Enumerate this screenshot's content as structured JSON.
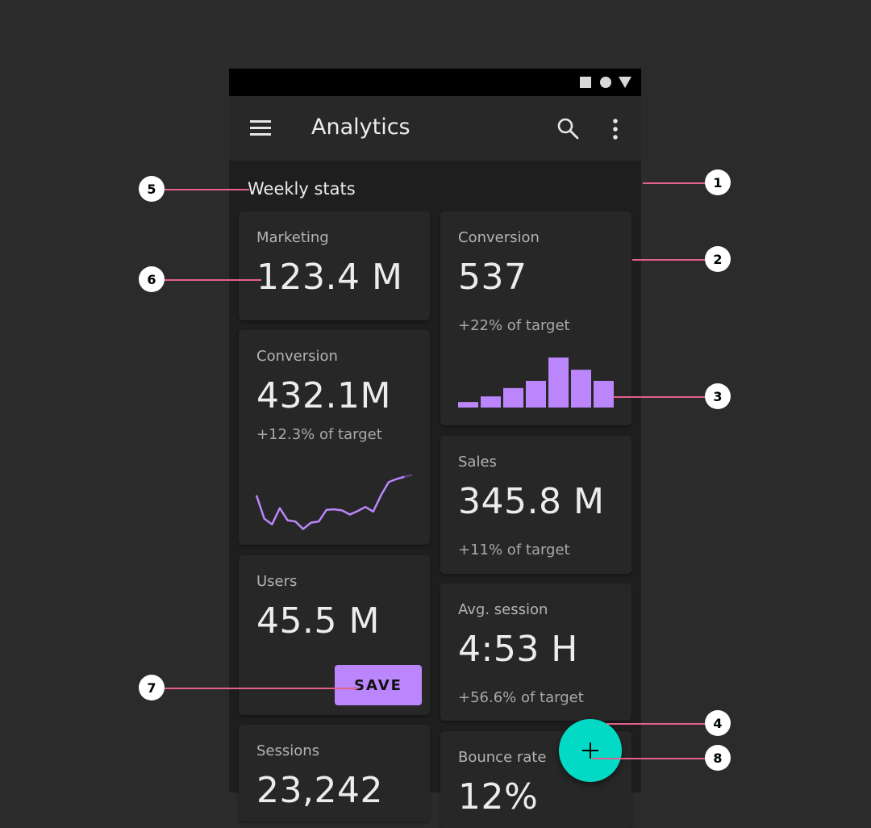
{
  "app": {
    "title": "Analytics"
  },
  "section_title": "Weekly stats",
  "cards": {
    "marketing": {
      "label": "Marketing",
      "value": "123.4 M"
    },
    "conversion_bar": {
      "label": "Conversion",
      "value": "537",
      "sub": "+22% of target"
    },
    "conversion_line": {
      "label": "Conversion",
      "value": "432.1M",
      "sub": "+12.3% of target"
    },
    "sales": {
      "label": "Sales",
      "value": "345.8 M",
      "sub": "+11% of target"
    },
    "users": {
      "label": "Users",
      "value": "45.5 M",
      "button": "SAVE"
    },
    "avg_session": {
      "label": "Avg. session",
      "value": "4:53 H",
      "sub": "+56.6% of target"
    },
    "sessions": {
      "label": "Sessions",
      "value": "23,242"
    },
    "bounce_rate": {
      "label": "Bounce rate",
      "value": "12%"
    }
  },
  "fab": {
    "icon": "plus-icon"
  },
  "callouts": [
    "1",
    "2",
    "3",
    "4",
    "5",
    "6",
    "7",
    "8"
  ],
  "colors": {
    "background": "#2b2b2b",
    "surface": "#1e1e1e",
    "card": "#272727",
    "primary": "#bb86fc",
    "secondary": "#03dac5",
    "callout_line": "#e2608a"
  },
  "chart_data": [
    {
      "type": "bar",
      "categories": [
        "1",
        "2",
        "3",
        "4",
        "5",
        "6",
        "7"
      ],
      "values": [
        1,
        2,
        3.5,
        4.8,
        9,
        6.8,
        4.8
      ],
      "ylim": [
        0,
        9
      ]
    },
    {
      "type": "line",
      "x": [
        0,
        1,
        2,
        3,
        4,
        5,
        6,
        7,
        8,
        9,
        10,
        11,
        12,
        13,
        14,
        15,
        16,
        17,
        18,
        19,
        20
      ],
      "values": [
        60,
        20,
        10,
        38,
        17,
        15,
        2,
        13,
        15,
        35,
        36,
        34,
        27,
        33,
        40,
        32,
        60,
        83,
        88,
        92,
        95
      ],
      "ylim": [
        0,
        100
      ]
    }
  ]
}
